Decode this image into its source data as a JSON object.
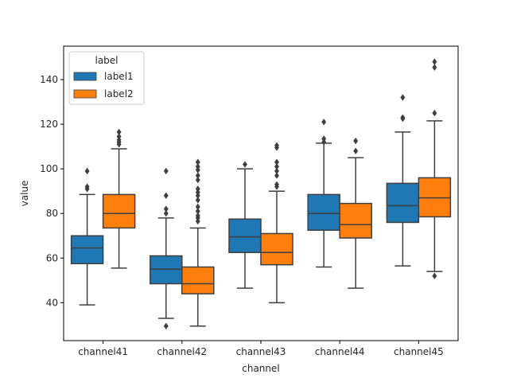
{
  "chart_data": {
    "type": "box",
    "xlabel": "channel",
    "ylabel": "value",
    "categories": [
      "channel41",
      "channel42",
      "channel43",
      "channel44",
      "channel45"
    ],
    "ylim": [
      23,
      155
    ],
    "yticks": [
      40,
      60,
      80,
      100,
      120,
      140
    ],
    "grid": false,
    "legend": {
      "title": "label",
      "position": "top-left"
    },
    "series": [
      {
        "name": "label1",
        "color": "#1f77b4",
        "boxes": [
          {
            "whislo": 39,
            "q1": 57.5,
            "med": 64.5,
            "q3": 70,
            "whishi": 88.5,
            "fliers": [
              91,
              92,
              99
            ]
          },
          {
            "whislo": 33,
            "q1": 48.5,
            "med": 55,
            "q3": 61,
            "whishi": 78,
            "fliers": [
              29.5,
              80,
              82,
              88,
              99
            ]
          },
          {
            "whislo": 46.5,
            "q1": 62.5,
            "med": 69.5,
            "q3": 77.5,
            "whishi": 100,
            "fliers": [
              102
            ]
          },
          {
            "whislo": 56,
            "q1": 72.5,
            "med": 80,
            "q3": 88.5,
            "whishi": 111.5,
            "fliers": [
              112,
              113.5,
              121
            ]
          },
          {
            "whislo": 56.5,
            "q1": 76,
            "med": 83.5,
            "q3": 93.5,
            "whishi": 116.5,
            "fliers": [
              122.5,
              123,
              132
            ]
          }
        ]
      },
      {
        "name": "label2",
        "color": "#ff7f0e",
        "boxes": [
          {
            "whislo": 55.5,
            "q1": 73.5,
            "med": 80,
            "q3": 88.5,
            "whishi": 109,
            "fliers": [
              111,
              112,
              113,
              114.5,
              116.5
            ]
          },
          {
            "whislo": 29.5,
            "q1": 44,
            "med": 48.5,
            "q3": 56,
            "whishi": 73.5,
            "fliers": [
              76.5,
              78,
              79,
              81,
              83,
              86,
              88,
              89.5,
              91,
              95,
              97,
              99.5,
              101,
              103
            ]
          },
          {
            "whislo": 40,
            "q1": 57,
            "med": 62.5,
            "q3": 71,
            "whishi": 90,
            "fliers": [
              92,
              93,
              97,
              99,
              101,
              103,
              109.5,
              110.5
            ]
          },
          {
            "whislo": 46.5,
            "q1": 69,
            "med": 75,
            "q3": 84.5,
            "whishi": 105,
            "fliers": [
              108,
              112.5
            ]
          },
          {
            "whislo": 54,
            "q1": 78.5,
            "med": 87,
            "q3": 96,
            "whishi": 121.5,
            "fliers": [
              52,
              125,
              145.5,
              148
            ]
          }
        ]
      }
    ]
  }
}
